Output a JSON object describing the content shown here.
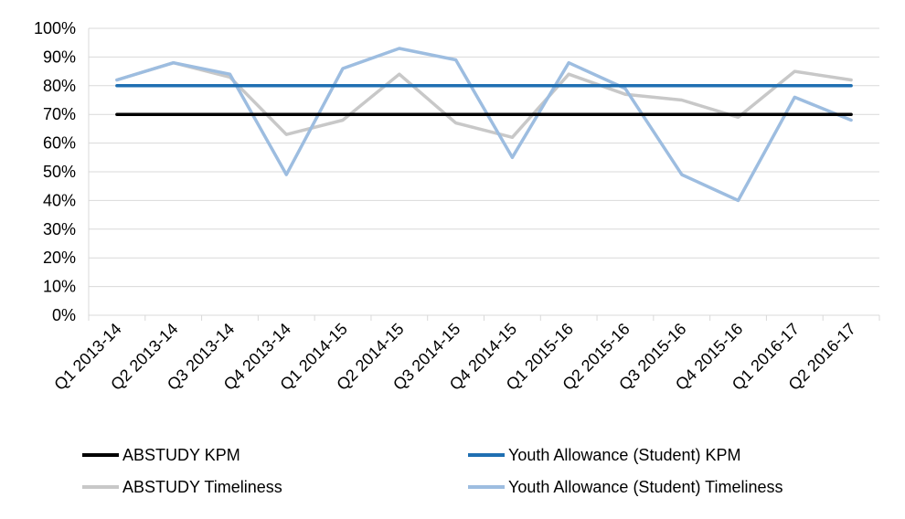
{
  "chart_data": {
    "type": "line",
    "title": "",
    "xlabel": "",
    "ylabel": "",
    "ylim": [
      0,
      100
    ],
    "y_ticks": [
      "0%",
      "10%",
      "20%",
      "30%",
      "40%",
      "50%",
      "60%",
      "70%",
      "80%",
      "90%",
      "100%"
    ],
    "y_tick_values": [
      0,
      10,
      20,
      30,
      40,
      50,
      60,
      70,
      80,
      90,
      100
    ],
    "grid": true,
    "legend_position": "bottom",
    "categories": [
      "Q1 2013-14",
      "Q2 2013-14",
      "Q3 2013-14",
      "Q4 2013-14",
      "Q1 2014-15",
      "Q2 2014-15",
      "Q3 2014-15",
      "Q4 2014-15",
      "Q1 2015-16",
      "Q2 2015-16",
      "Q3 2015-16",
      "Q4 2015-16",
      "Q1 2016-17",
      "Q2 2016-17"
    ],
    "series": [
      {
        "name": "ABSTUDY KPM",
        "color": "#000000",
        "values": [
          70,
          70,
          70,
          70,
          70,
          70,
          70,
          70,
          70,
          70,
          70,
          70,
          70,
          70
        ]
      },
      {
        "name": "Youth Allowance (Student) KPM",
        "color": "#1f6fb2",
        "values": [
          80,
          80,
          80,
          80,
          80,
          80,
          80,
          80,
          80,
          80,
          80,
          80,
          80,
          80
        ]
      },
      {
        "name": "ABSTUDY Timeliness",
        "color": "#c8c8c8",
        "values": [
          82,
          88,
          83,
          63,
          68,
          84,
          67,
          62,
          84,
          77,
          75,
          69,
          85,
          82
        ]
      },
      {
        "name": "Youth Allowance (Student) Timeliness",
        "color": "#9dbde0",
        "values": [
          82,
          88,
          84,
          49,
          86,
          93,
          89,
          55,
          88,
          79,
          49,
          40,
          76,
          68
        ]
      }
    ]
  }
}
